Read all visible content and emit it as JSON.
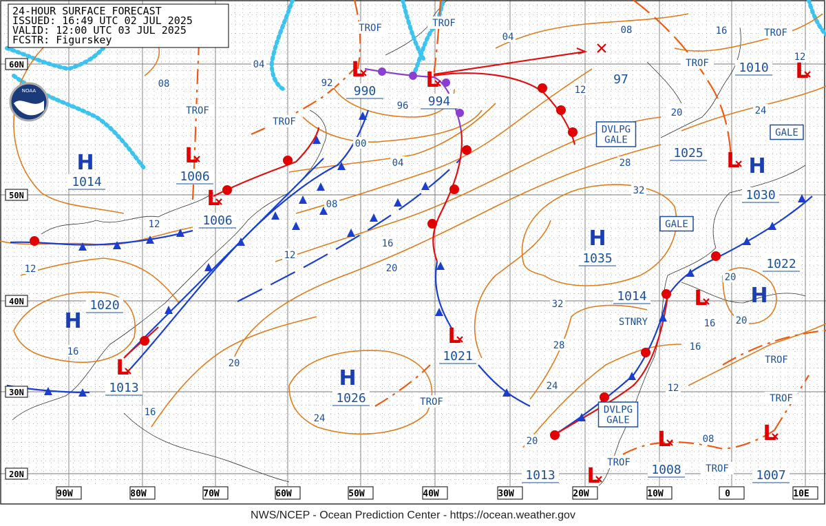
{
  "header": {
    "lines": [
      "24-HOUR SURFACE FORECAST",
      "ISSUED: 16:49 UTC 02 JUL 2025",
      "VALID: 12:00 UTC 03 JUL 2025",
      "FCSTR: Figurskey"
    ]
  },
  "lat_labels": [
    "60N",
    "50N",
    "40N",
    "30N",
    "20N"
  ],
  "lon_labels": [
    "90W",
    "80W",
    "70W",
    "60W",
    "50W",
    "40W",
    "30W",
    "20W",
    "10W",
    "0",
    "10E"
  ],
  "systems": [
    {
      "type": "H",
      "pressure": "1014"
    },
    {
      "type": "L",
      "pressure": "1006"
    },
    {
      "type": "L",
      "pressure": "1006"
    },
    {
      "type": "L",
      "pressure": "990"
    },
    {
      "type": "L",
      "pressure": "994"
    },
    {
      "type": "L",
      "pressure": "1010"
    },
    {
      "type": "H",
      "pressure": "1030"
    },
    {
      "type": "L",
      "pressure": "1025"
    },
    {
      "type": "H",
      "pressure": "1035"
    },
    {
      "type": "L",
      "pressure": "1014"
    },
    {
      "type": "H",
      "pressure": "1022"
    },
    {
      "type": "H",
      "pressure": "1020"
    },
    {
      "type": "L",
      "pressure": "1013"
    },
    {
      "type": "L",
      "pressure": "1021"
    },
    {
      "type": "H",
      "pressure": "1026"
    },
    {
      "type": "L",
      "pressure": "1013"
    },
    {
      "type": "L",
      "pressure": "1008"
    },
    {
      "type": "L",
      "pressure": "1007"
    }
  ],
  "isobar_labels": [
    "08",
    "04",
    "92",
    "96",
    "00",
    "04",
    "08",
    "12",
    "12",
    "12",
    "16",
    "20",
    "04",
    "08",
    "16",
    "12",
    "97",
    "20",
    "24",
    "28",
    "32",
    "32",
    "28",
    "24",
    "20",
    "20",
    "20",
    "16",
    "16",
    "12",
    "08",
    "16",
    "20",
    "16",
    "24",
    "12"
  ],
  "annotations": [
    {
      "kind": "text",
      "lines": [
        "TROF"
      ]
    },
    {
      "kind": "text",
      "lines": [
        "TROF"
      ]
    },
    {
      "kind": "text",
      "lines": [
        "TROF"
      ]
    },
    {
      "kind": "text",
      "lines": [
        "TROF"
      ]
    },
    {
      "kind": "text",
      "lines": [
        "TROF"
      ]
    },
    {
      "kind": "text",
      "lines": [
        "TROF"
      ]
    },
    {
      "kind": "text",
      "lines": [
        "TROF"
      ]
    },
    {
      "kind": "text",
      "lines": [
        "TROF"
      ]
    },
    {
      "kind": "text",
      "lines": [
        "TROF"
      ]
    },
    {
      "kind": "text",
      "lines": [
        "TROF"
      ]
    },
    {
      "kind": "text",
      "lines": [
        "TROF"
      ]
    },
    {
      "kind": "text",
      "lines": [
        "STNRY"
      ]
    },
    {
      "kind": "box",
      "lines": [
        "GALE"
      ]
    },
    {
      "kind": "box",
      "lines": [
        "GALE"
      ]
    },
    {
      "kind": "box",
      "lines": [
        "DVLPG",
        "GALE"
      ]
    },
    {
      "kind": "box",
      "lines": [
        "DVLPG",
        "GALE"
      ]
    }
  ],
  "footer": "NWS/NCEP - Ocean Prediction Center - https://ocean.weather.gov"
}
